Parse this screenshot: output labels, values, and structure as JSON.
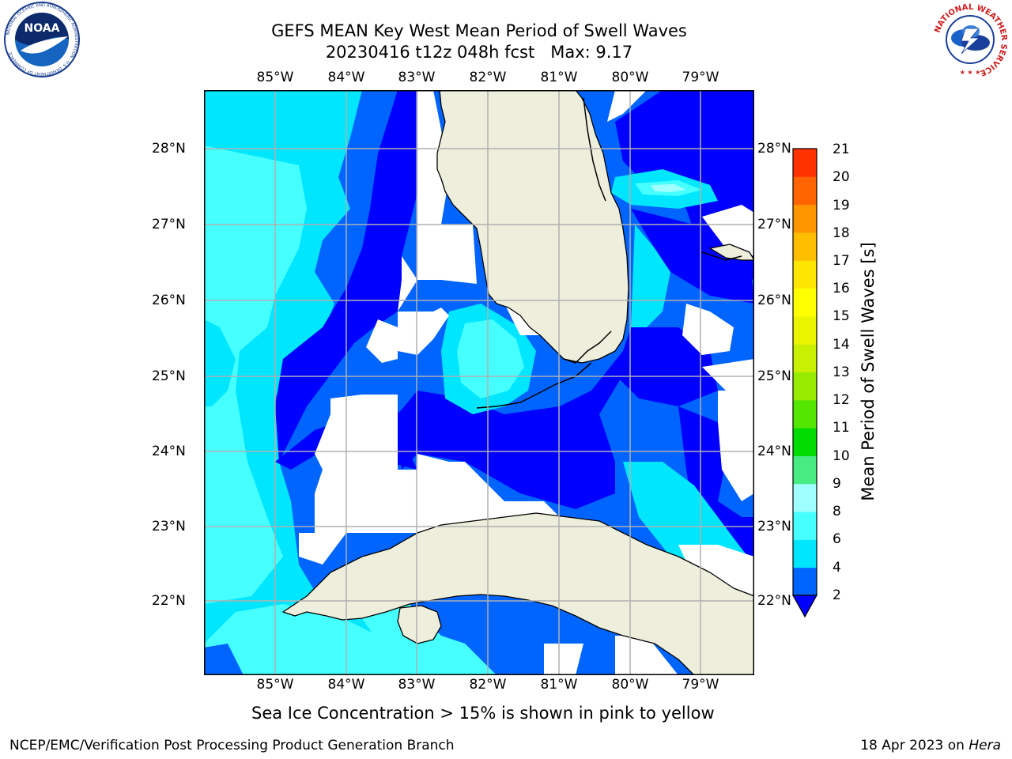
{
  "header": {
    "title_line1": "GEFS MEAN Key West Mean Period of Swell Waves",
    "title_line2": "20230416 t12z 048h fcst   Max: 9.17"
  },
  "logos": {
    "noaa": {
      "text": "NOAA",
      "ring_text": "NATIONAL OCEANIC AND ATMOSPHERIC ADMINISTRATION · U.S. DEPARTMENT OF COMMERCE"
    },
    "nws": {
      "ring_text": "NATIONAL WEATHER SERVICE"
    }
  },
  "map": {
    "lon_labels": [
      "85°W",
      "84°W",
      "83°W",
      "82°W",
      "81°W",
      "80°W",
      "79°W"
    ],
    "lat_labels": [
      "28°N",
      "27°N",
      "26°N",
      "25°N",
      "24°N",
      "23°N",
      "22°N"
    ],
    "extent": {
      "lon_min": -86.0,
      "lon_max": -78.25,
      "lat_min": 21.0,
      "lat_max": 28.75
    },
    "land_color": "#eeeedd",
    "grid_color": "#b0b0b0"
  },
  "colorbar": {
    "label": "Mean Period of Swell Waves [s]",
    "ticks": [
      "2",
      "4",
      "6",
      "8",
      "9",
      "10",
      "11",
      "12",
      "13",
      "14",
      "15",
      "16",
      "17",
      "18",
      "19",
      "20",
      "21"
    ],
    "colors": [
      "#0064ff",
      "#00e6ff",
      "#46ffff",
      "#a0ffff",
      "#46eb82",
      "#00dc00",
      "#55e600",
      "#96eb00",
      "#c8f000",
      "#ebf500",
      "#ffff00",
      "#ffe600",
      "#ffbe00",
      "#ff9600",
      "#ff6400",
      "#ff3200"
    ],
    "underflow_color": "#0000ff"
  },
  "footnote": "Sea Ice Concentration > 15% is shown in pink to yellow",
  "footer": {
    "left": "NCEP/EMC/Verification Post Processing Product Generation Branch",
    "right_date": "18 Apr 2023 on ",
    "right_host": "Hera"
  }
}
